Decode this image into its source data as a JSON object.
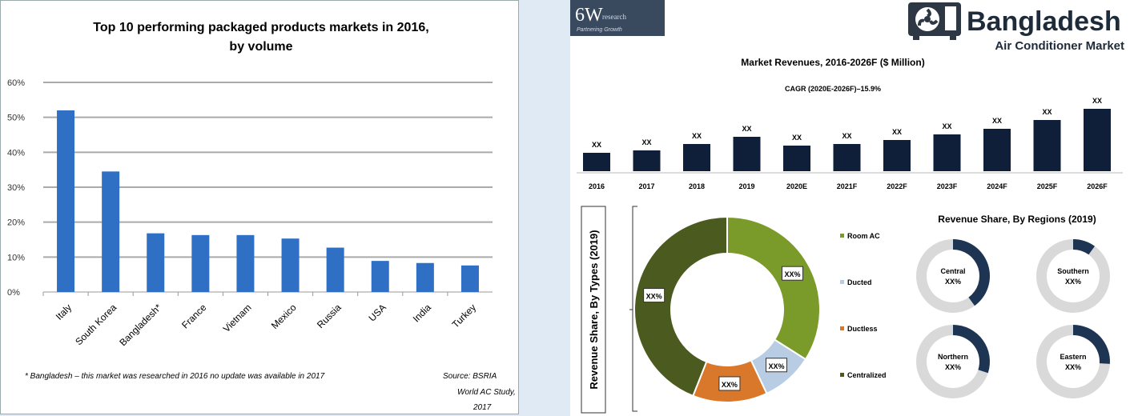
{
  "chart_data": [
    {
      "type": "bar",
      "title": "Top 10 performing packaged products markets in 2016, by volume",
      "categories": [
        "Italy",
        "South Korea",
        "Bangladesh*",
        "France",
        "Vietnam",
        "Mexico",
        "Russia",
        "USA",
        "India",
        "Turkey"
      ],
      "values": [
        52,
        34.5,
        16.8,
        16.3,
        16.3,
        15.3,
        12.7,
        8.9,
        8.3,
        7.6
      ],
      "yticks": [
        "0%",
        "10%",
        "20%",
        "30%",
        "40%",
        "50%",
        "60%"
      ],
      "ylim": [
        0,
        60
      ],
      "grid": true,
      "color": "#2f6fc4",
      "footnote": "* Bangladesh – this market was researched in 2016 no update was available in 2017",
      "source": "Source: BSRIA World AC Study, 2017"
    },
    {
      "type": "bar",
      "title": "Market Revenues, 2016-2026F ($ Million)",
      "subtitle": "CAGR (2020E-2026F)–15.9%",
      "categories": [
        "2016",
        "2017",
        "2018",
        "2019",
        "2020E",
        "2021F",
        "2022F",
        "2023F",
        "2024F",
        "2025F",
        "2026F"
      ],
      "values": [
        23,
        26,
        34,
        43,
        32,
        34,
        39,
        46,
        53,
        64,
        78
      ],
      "data_labels": [
        "XX",
        "XX",
        "XX",
        "XX",
        "XX",
        "XX",
        "XX",
        "XX",
        "XX",
        "XX",
        "XX"
      ],
      "color": "#0f1f3a"
    },
    {
      "type": "pie",
      "title": "Revenue Share, By Types (2019)",
      "labels": [
        "Room AC",
        "Ducted",
        "Ductless",
        "Centralized"
      ],
      "values": [
        34,
        9,
        13,
        44
      ],
      "data_labels": [
        "XX%",
        "XX%",
        "XX%",
        "XX%"
      ],
      "colors": [
        "#7a9a2a",
        "#b8cde3",
        "#d9782a",
        "#4b5a1e"
      ]
    },
    {
      "type": "pie",
      "title": "Revenue Share, By Regions (2019)",
      "regions": [
        {
          "name": "Central",
          "label": "XX%",
          "value": 40
        },
        {
          "name": "Southern",
          "label": "XX%",
          "value": 10
        },
        {
          "name": "Northern",
          "label": "XX%",
          "value": 30
        },
        {
          "name": "Eastern",
          "label": "XX%",
          "value": 26
        }
      ],
      "colors": [
        "#1d3553",
        "#d9d9d9"
      ]
    }
  ],
  "brand": {
    "logo": "6W",
    "logo_sub": "research",
    "tagline": "Partnering Growth",
    "heading": "Bangladesh",
    "subheading": "Air Conditioner Market"
  }
}
